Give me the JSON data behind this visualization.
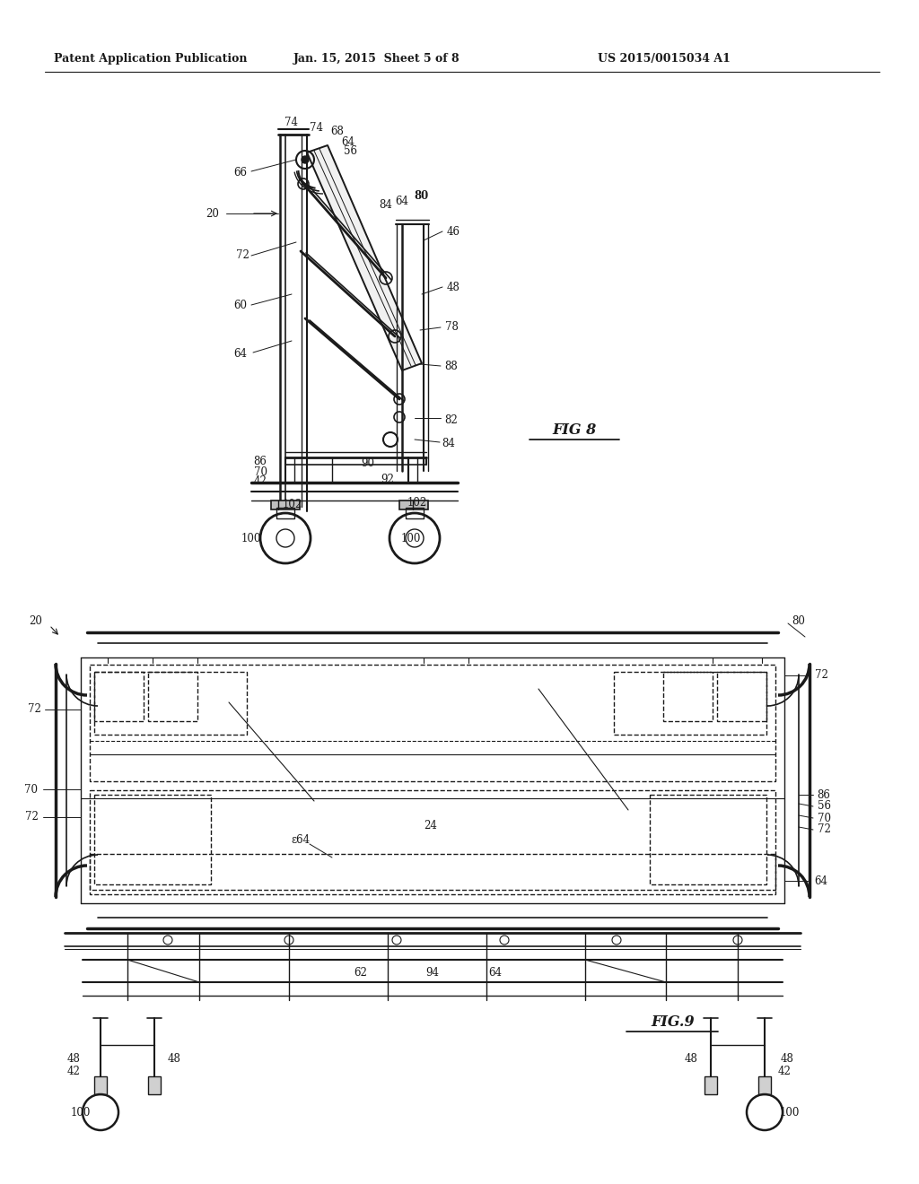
{
  "bg_color": "#ffffff",
  "line_color": "#1a1a1a",
  "text_color": "#1a1a1a",
  "header_left": "Patent Application Publication",
  "header_mid": "Jan. 15, 2015  Sheet 5 of 8",
  "header_right": "US 2015/0015034 A1",
  "fig8_label": "FIG 8",
  "fig9_label": "FIG.9",
  "fig_width": 10.24,
  "fig_height": 13.2,
  "dpi": 100
}
